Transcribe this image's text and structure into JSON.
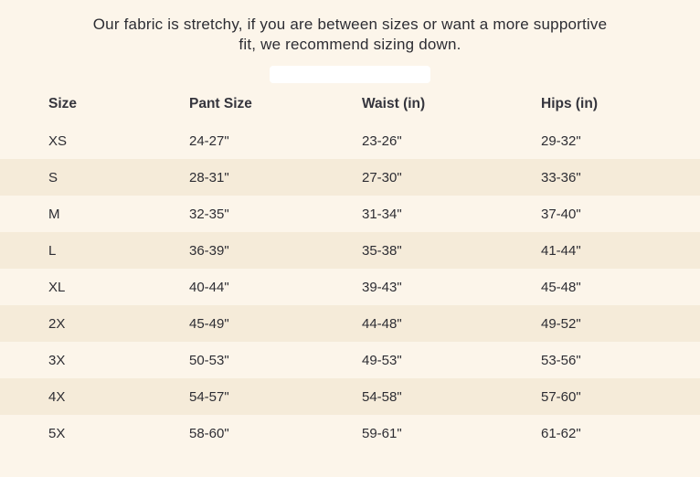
{
  "page": {
    "background_color": "#fcf5ea",
    "stripe_color": "#f5ebd9",
    "text_color": "#2d2d33"
  },
  "intro": {
    "text": "Our fabric is stretchy, if you are between sizes or want a more supportive fit, we recommend sizing down."
  },
  "size_chart": {
    "columns": [
      "Size",
      "Pant Size",
      "Waist (in)",
      "Hips (in)"
    ],
    "rows": [
      {
        "size": "XS",
        "pant_size": "24-27\"",
        "waist": "23-26\"",
        "hips": "29-32\""
      },
      {
        "size": "S",
        "pant_size": "28-31\"",
        "waist": "27-30\"",
        "hips": "33-36\""
      },
      {
        "size": "M",
        "pant_size": "32-35\"",
        "waist": "31-34\"",
        "hips": "37-40\""
      },
      {
        "size": "L",
        "pant_size": "36-39\"",
        "waist": "35-38\"",
        "hips": "41-44\""
      },
      {
        "size": "XL",
        "pant_size": "40-44\"",
        "waist": "39-43\"",
        "hips": "45-48\""
      },
      {
        "size": "2X",
        "pant_size": "45-49\"",
        "waist": "44-48\"",
        "hips": "49-52\""
      },
      {
        "size": "3X",
        "pant_size": "50-53\"",
        "waist": "49-53\"",
        "hips": "53-56\""
      },
      {
        "size": "4X",
        "pant_size": "54-57\"",
        "waist": "54-58\"",
        "hips": "57-60\""
      },
      {
        "size": "5X",
        "pant_size": "58-60\"",
        "waist": "59-61\"",
        "hips": "61-62\""
      }
    ]
  }
}
